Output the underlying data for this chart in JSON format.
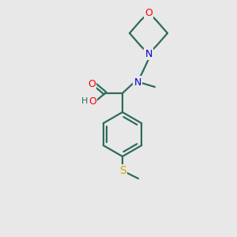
{
  "bg_color": "#e8e8e8",
  "bond_color": "#2d6b5e",
  "atom_colors": {
    "O": "#ff0000",
    "N": "#0000cc",
    "S": "#ccaa00",
    "C": "#2d6b5e",
    "H": "#2d6b5e"
  },
  "figsize": [
    3.0,
    3.0
  ],
  "dpi": 100
}
